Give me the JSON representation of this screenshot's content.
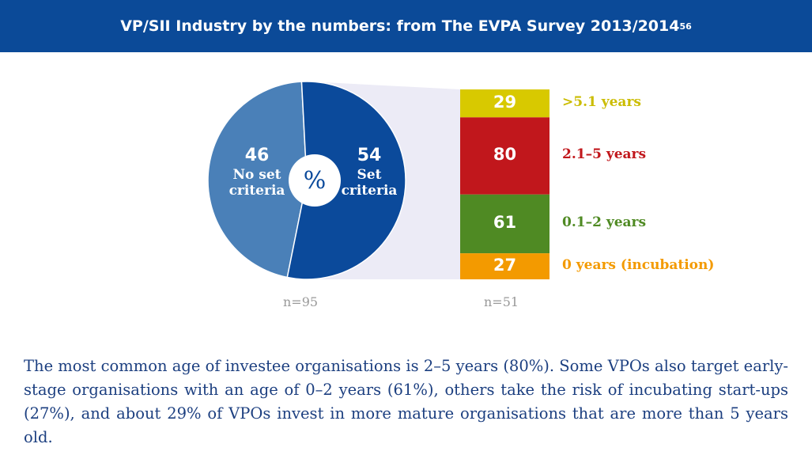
{
  "title": "VP/SII Industry by the numbers: from The EVPA Survey 2013/2014",
  "footnote": "56",
  "chart_data": [
    {
      "type": "pie",
      "categories": [
        "No set criteria",
        "Set criteria"
      ],
      "values": [
        46,
        54
      ],
      "colors": [
        "#4a80b8",
        "#0b4a9b"
      ],
      "center_label": "%",
      "note": "n=95"
    },
    {
      "type": "stack",
      "categories": [
        ">5.1 years",
        "2.1–5 years",
        "0.1–2 years",
        "0 years (incubation)"
      ],
      "values": [
        29,
        80,
        61,
        27
      ],
      "colors": [
        "#d8c900",
        "#c1171c",
        "#4f8a23",
        "#f39a00"
      ],
      "label_colors": [
        "#cbbc00",
        "#c1171c",
        "#4f8a23",
        "#f39a00"
      ],
      "note": "n=51"
    }
  ],
  "text": "The most common age of investee organisations is 2–5 years (80%). Some VPOs also target early-stage organisations with an age of 0–2 years (61%), others take the risk of incubating start-ups (27%), and about 29% of VPOs invest in more mature organisations that are more than 5 years old."
}
